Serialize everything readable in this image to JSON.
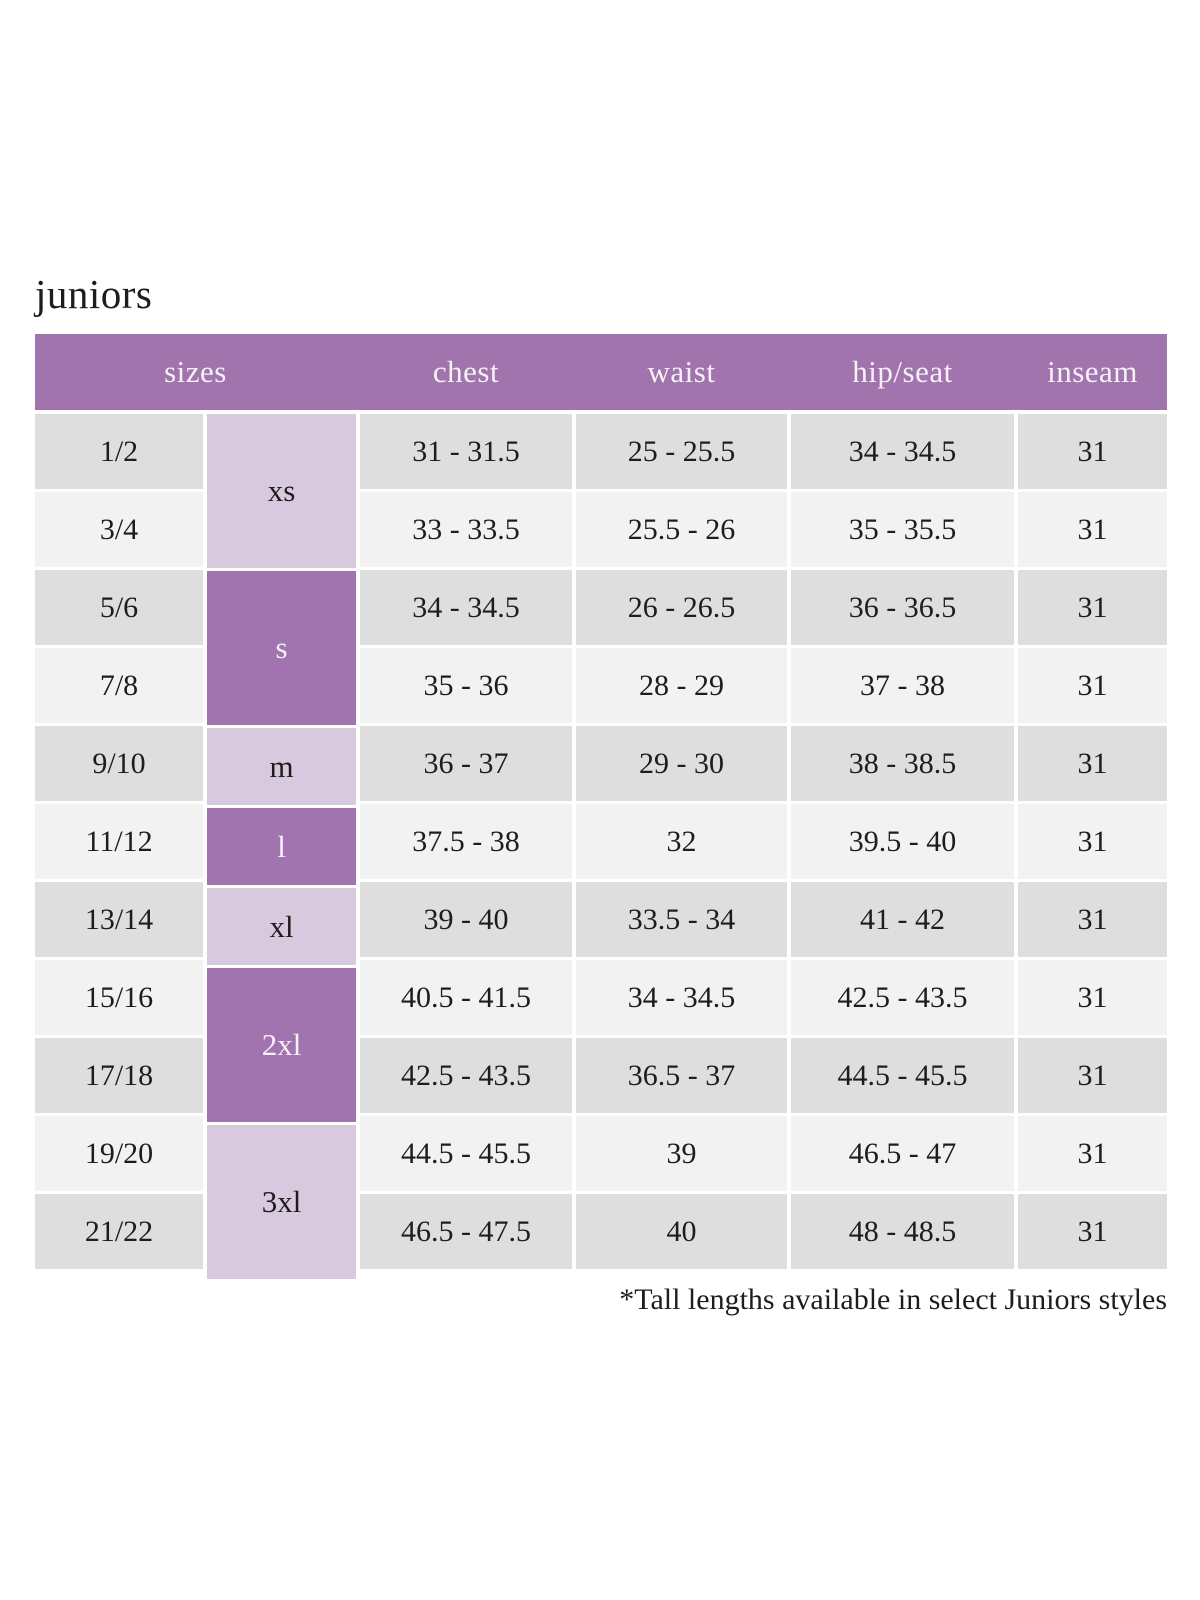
{
  "page": {
    "title": "juniors",
    "footnote": "*Tall lengths available in select Juniors styles"
  },
  "colors": {
    "header_bg": "#a174ae",
    "group_dark": "#a274af",
    "group_light": "#d9c9df",
    "row_dark": "#dedede",
    "row_light": "#f2f2f2",
    "header_text": "#f6f0f7",
    "body_text": "#1d1d1b"
  },
  "table": {
    "headers": [
      "sizes",
      "chest",
      "waist",
      "hip/seat",
      "inseam"
    ],
    "size_groups": [
      {
        "label": "xs",
        "rows": 2,
        "shade": "light"
      },
      {
        "label": "s",
        "rows": 2,
        "shade": "dark"
      },
      {
        "label": "m",
        "rows": 1,
        "shade": "light"
      },
      {
        "label": "l",
        "rows": 1,
        "shade": "dark"
      },
      {
        "label": "xl",
        "rows": 1,
        "shade": "light"
      },
      {
        "label": "2xl",
        "rows": 2,
        "shade": "dark"
      },
      {
        "label": "3xl",
        "rows": 2,
        "shade": "light"
      }
    ],
    "rows": [
      {
        "size": "1/2",
        "chest": "31 - 31.5",
        "waist": "25 - 25.5",
        "hip_seat": "34 - 34.5",
        "inseam": "31"
      },
      {
        "size": "3/4",
        "chest": "33 - 33.5",
        "waist": "25.5 - 26",
        "hip_seat": "35 - 35.5",
        "inseam": "31"
      },
      {
        "size": "5/6",
        "chest": "34 - 34.5",
        "waist": "26 - 26.5",
        "hip_seat": "36 - 36.5",
        "inseam": "31"
      },
      {
        "size": "7/8",
        "chest": "35 - 36",
        "waist": "28 - 29",
        "hip_seat": "37 - 38",
        "inseam": "31"
      },
      {
        "size": "9/10",
        "chest": "36 - 37",
        "waist": "29 - 30",
        "hip_seat": "38 - 38.5",
        "inseam": "31"
      },
      {
        "size": "11/12",
        "chest": "37.5 - 38",
        "waist": "32",
        "hip_seat": "39.5 - 40",
        "inseam": "31"
      },
      {
        "size": "13/14",
        "chest": "39 - 40",
        "waist": "33.5 - 34",
        "hip_seat": "41 - 42",
        "inseam": "31"
      },
      {
        "size": "15/16",
        "chest": "40.5 - 41.5",
        "waist": "34 - 34.5",
        "hip_seat": "42.5 - 43.5",
        "inseam": "31"
      },
      {
        "size": "17/18",
        "chest": "42.5 - 43.5",
        "waist": "36.5 - 37",
        "hip_seat": "44.5 - 45.5",
        "inseam": "31"
      },
      {
        "size": "19/20",
        "chest": "44.5 - 45.5",
        "waist": "39",
        "hip_seat": "46.5 - 47",
        "inseam": "31"
      },
      {
        "size": "21/22",
        "chest": "46.5 - 47.5",
        "waist": "40",
        "hip_seat": "48 - 48.5",
        "inseam": "31"
      }
    ]
  }
}
